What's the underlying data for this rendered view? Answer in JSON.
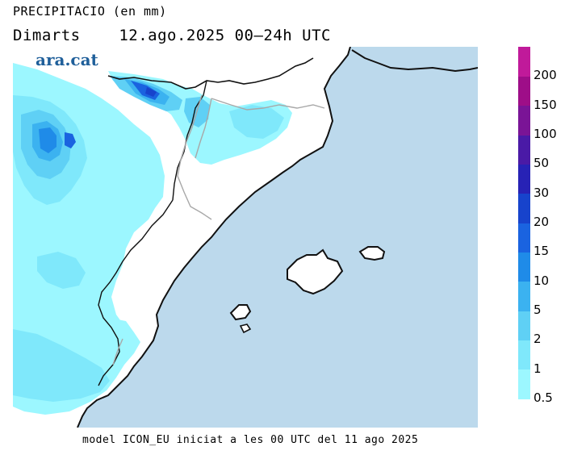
{
  "header": {
    "title": "PRECIPITACIO (en mm)",
    "day": "Dimarts",
    "date_range": "12.ago.2025 00—24h UTC"
  },
  "logo": {
    "text": "ara.cat"
  },
  "footer": {
    "text": "model ICON_EU iniciat a les 00 UTC del 11 ago 2025"
  },
  "colors": {
    "sea": "#bcd9ec",
    "land": "#ffffff",
    "coast": "#111111",
    "borders": "#a8a8a8"
  },
  "legend": {
    "units": "mm",
    "classes": [
      {
        "label": "0.5",
        "color": "#9cf7ff"
      },
      {
        "label": "1",
        "color": "#7fe8fb"
      },
      {
        "label": "2",
        "color": "#5fd0f5"
      },
      {
        "label": "5",
        "color": "#3bb2f0"
      },
      {
        "label": "10",
        "color": "#1f8be8"
      },
      {
        "label": "15",
        "color": "#1a63e0"
      },
      {
        "label": "20",
        "color": "#1743cc"
      },
      {
        "label": "30",
        "color": "#2722b5"
      },
      {
        "label": "50",
        "color": "#4a1aa6"
      },
      {
        "label": "100",
        "color": "#7a1496"
      },
      {
        "label": "150",
        "color": "#9e0e88"
      },
      {
        "label": "200",
        "color": "#c01a9a"
      }
    ]
  }
}
